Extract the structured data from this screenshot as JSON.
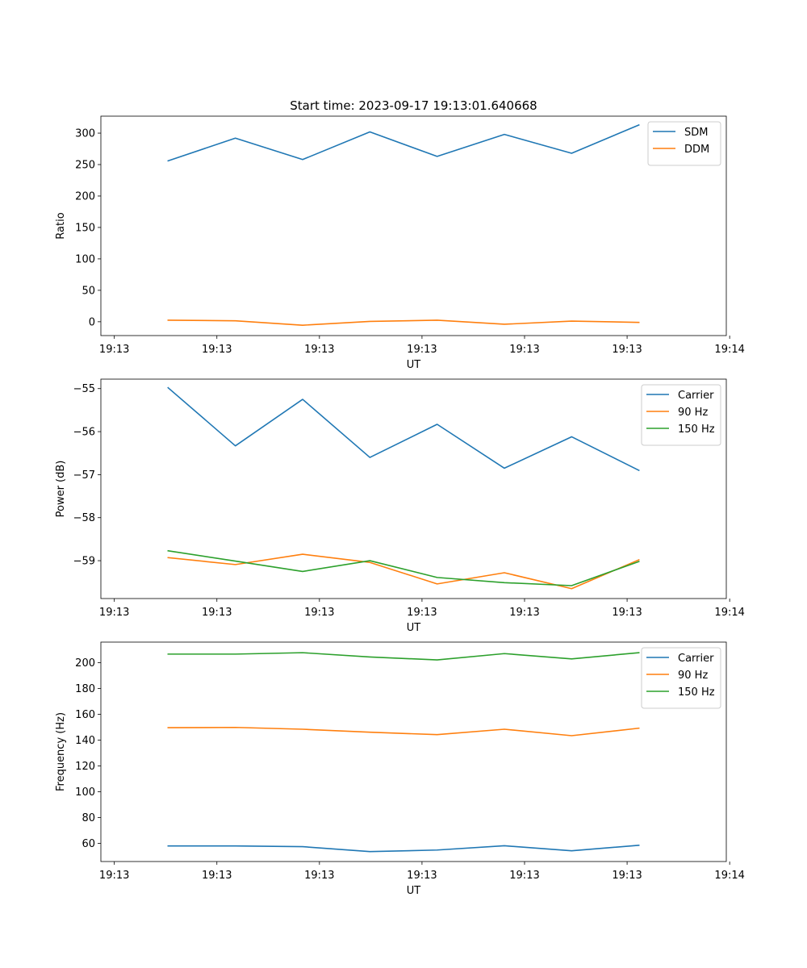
{
  "colors": {
    "c0": "#1f77b4",
    "c1": "#ff7f0e",
    "c2": "#2ca02c"
  },
  "chart_data": [
    {
      "type": "line",
      "title": "Start time: 2023-09-17 19:13:01.640668",
      "xlabel": "UT",
      "ylabel": "Ratio",
      "x": [
        1,
        2,
        3,
        4,
        5,
        6,
        7,
        8
      ],
      "xlim": [
        0,
        9.3
      ],
      "x_ticks": [
        {
          "pos": 0.2,
          "label": "19:13"
        },
        {
          "pos": 1.725,
          "label": "19:13"
        },
        {
          "pos": 3.25,
          "label": "19:13"
        },
        {
          "pos": 4.775,
          "label": "19:13"
        },
        {
          "pos": 6.3,
          "label": "19:13"
        },
        {
          "pos": 7.825,
          "label": "19:13"
        },
        {
          "pos": 9.35,
          "label": "19:14"
        }
      ],
      "ylim": [
        -22,
        327
      ],
      "y_ticks": [
        0,
        50,
        100,
        150,
        200,
        250,
        300
      ],
      "y_tick_labels": [
        "0",
        "50",
        "100",
        "150",
        "200",
        "250",
        "300"
      ],
      "legend": "top-right",
      "series": [
        {
          "name": "SDM",
          "color": "#1f77b4",
          "values": [
            256,
            292,
            258,
            302,
            263,
            298,
            268,
            313
          ]
        },
        {
          "name": "DDM",
          "color": "#ff7f0e",
          "values": [
            2.5,
            1.5,
            -5.5,
            0.5,
            2.5,
            -4,
            1,
            -1
          ]
        }
      ]
    },
    {
      "type": "line",
      "title": "",
      "xlabel": "UT",
      "ylabel": "Power (dB)",
      "x": [
        1,
        2,
        3,
        4,
        5,
        6,
        7,
        8
      ],
      "xlim": [
        0,
        9.3
      ],
      "x_ticks": [
        {
          "pos": 0.2,
          "label": "19:13"
        },
        {
          "pos": 1.725,
          "label": "19:13"
        },
        {
          "pos": 3.25,
          "label": "19:13"
        },
        {
          "pos": 4.775,
          "label": "19:13"
        },
        {
          "pos": 6.3,
          "label": "19:13"
        },
        {
          "pos": 7.825,
          "label": "19:13"
        },
        {
          "pos": 9.35,
          "label": "19:14"
        }
      ],
      "ylim": [
        -59.88,
        -54.78
      ],
      "y_ticks": [
        -59,
        -58,
        -57,
        -56,
        -55
      ],
      "y_tick_labels": [
        "−59",
        "−58",
        "−57",
        "−56",
        "−55"
      ],
      "legend": "top-right",
      "series": [
        {
          "name": "Carrier",
          "color": "#1f77b4",
          "values": [
            -54.98,
            -56.33,
            -55.25,
            -56.6,
            -55.83,
            -56.85,
            -56.12,
            -56.9
          ]
        },
        {
          "name": "90 Hz",
          "color": "#ff7f0e",
          "values": [
            -58.93,
            -59.09,
            -58.85,
            -59.04,
            -59.54,
            -59.28,
            -59.65,
            -58.98
          ]
        },
        {
          "name": "150 Hz",
          "color": "#2ca02c",
          "values": [
            -58.77,
            -59.01,
            -59.25,
            -59.0,
            -59.39,
            -59.51,
            -59.58,
            -59.02
          ]
        }
      ]
    },
    {
      "type": "line",
      "title": "",
      "xlabel": "UT",
      "ylabel": "Frequency (Hz)",
      "x": [
        1,
        2,
        3,
        4,
        5,
        6,
        7,
        8
      ],
      "xlim": [
        0,
        9.3
      ],
      "x_ticks": [
        {
          "pos": 0.2,
          "label": "19:13"
        },
        {
          "pos": 1.725,
          "label": "19:13"
        },
        {
          "pos": 3.25,
          "label": "19:13"
        },
        {
          "pos": 4.775,
          "label": "19:13"
        },
        {
          "pos": 6.3,
          "label": "19:13"
        },
        {
          "pos": 7.825,
          "label": "19:13"
        },
        {
          "pos": 9.35,
          "label": "19:14"
        }
      ],
      "ylim": [
        45.9,
        215.9
      ],
      "y_ticks": [
        60,
        80,
        100,
        120,
        140,
        160,
        180,
        200
      ],
      "y_tick_labels": [
        "60",
        "80",
        "100",
        "120",
        "140",
        "160",
        "180",
        "200"
      ],
      "legend": "top-right",
      "series": [
        {
          "name": "Carrier",
          "color": "#1f77b4",
          "values": [
            58,
            58,
            57.4,
            53.6,
            54.8,
            58.1,
            54.2,
            58.5
          ]
        },
        {
          "name": "90 Hz",
          "color": "#ff7f0e",
          "values": [
            149.6,
            149.8,
            148.4,
            146.1,
            144.2,
            148.4,
            143.4,
            149.2
          ]
        },
        {
          "name": "150 Hz",
          "color": "#2ca02c",
          "values": [
            206.6,
            206.6,
            207.7,
            204.4,
            202.1,
            207.0,
            202.9,
            207.7
          ]
        }
      ]
    }
  ]
}
